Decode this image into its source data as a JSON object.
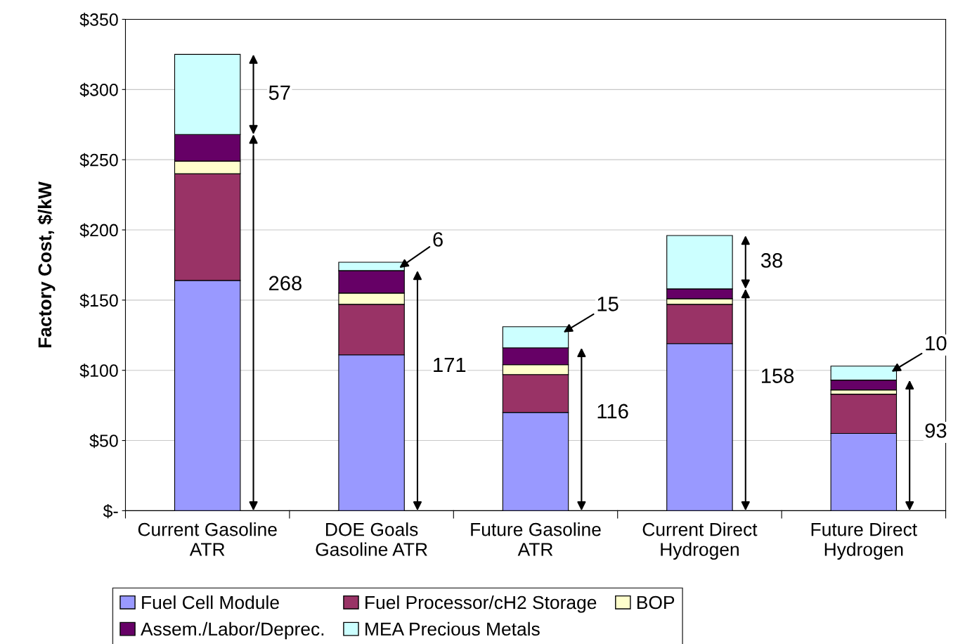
{
  "chart_data": {
    "type": "bar",
    "stacked": true,
    "ylabel": "Factory Cost, $/kW",
    "categories": [
      "Current Gasoline\nATR",
      "DOE Goals\nGasoline ATR",
      "Future Gasoline\nATR",
      "Current Direct\nHydrogen",
      "Future Direct\nHydrogen"
    ],
    "series": [
      {
        "name": "Fuel Cell Module",
        "color": "#9999ff",
        "values": [
          164,
          111,
          70,
          119,
          55
        ]
      },
      {
        "name": "Fuel Processor/cH2 Storage",
        "color": "#993366",
        "values": [
          76,
          36,
          27,
          28,
          28
        ]
      },
      {
        "name": "BOP",
        "color": "#ffffcc",
        "values": [
          9,
          8,
          7,
          4,
          3
        ]
      },
      {
        "name": "Assem./Labor/Deprec.",
        "color": "#660066",
        "values": [
          19,
          16,
          12,
          7,
          7
        ]
      },
      {
        "name": "MEA Precious Metals",
        "color": "#ccffff",
        "values": [
          57,
          6,
          15,
          38,
          10
        ]
      }
    ],
    "ylim": [
      0,
      350
    ],
    "yticks": [
      {
        "value": 0,
        "label": "$-"
      },
      {
        "value": 50,
        "label": "$50"
      },
      {
        "value": 100,
        "label": "$100"
      },
      {
        "value": 150,
        "label": "$150"
      },
      {
        "value": 200,
        "label": "$200"
      },
      {
        "value": 250,
        "label": "$250"
      },
      {
        "value": 300,
        "label": "$300"
      },
      {
        "value": 350,
        "label": "$350"
      }
    ],
    "grid": "y",
    "legend": "bottom",
    "annotations": [
      "57",
      "268",
      "6",
      "171",
      "15",
      "116",
      "38",
      "158",
      "10",
      "93"
    ]
  }
}
